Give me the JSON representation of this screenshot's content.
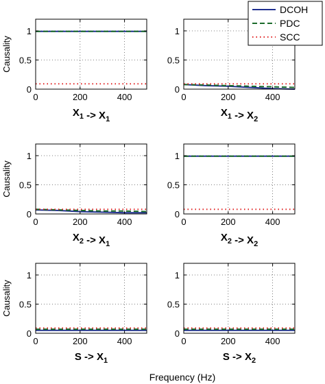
{
  "figure": {
    "x_common_label": "Frequency (Hz)"
  },
  "legend": {
    "placement": "top-right",
    "entries": [
      {
        "label": "DCOH",
        "color": "#1f2f8f",
        "style": "solid"
      },
      {
        "label": "PDC",
        "color": "#1a6b2a",
        "style": "dashed"
      },
      {
        "label": "SCC",
        "color": "#e02020",
        "style": "dotted"
      }
    ]
  },
  "chart_data": [
    {
      "type": "line",
      "panel": "1-1",
      "title": {
        "base1": "X",
        "sub1": "1",
        "arrow": " -> ",
        "base2": "X",
        "sub2": "1"
      },
      "ylabel": "Causality",
      "xlim": [
        0,
        500
      ],
      "ylim": [
        0,
        1.2
      ],
      "xticks": [
        "0",
        "200",
        "400"
      ],
      "yticks": [
        "0",
        "0.5",
        "1"
      ],
      "grid": true,
      "x": [
        0,
        100,
        200,
        300,
        400,
        500
      ],
      "series": [
        {
          "name": "DCOH",
          "values": [
            0.99,
            0.99,
            0.99,
            0.99,
            0.99,
            0.99
          ]
        },
        {
          "name": "PDC",
          "values": [
            0.99,
            0.99,
            0.99,
            0.99,
            0.99,
            0.99
          ]
        },
        {
          "name": "SCC",
          "values": [
            0.09,
            0.09,
            0.09,
            0.09,
            0.09,
            0.09
          ]
        }
      ]
    },
    {
      "type": "line",
      "panel": "1-2",
      "title": {
        "base1": "X",
        "sub1": "1",
        "arrow": " -> ",
        "base2": "X",
        "sub2": "2"
      },
      "ylabel": "",
      "xlim": [
        0,
        500
      ],
      "ylim": [
        0,
        1.2
      ],
      "xticks": [
        "0",
        "200",
        "400"
      ],
      "yticks": [
        "0",
        "0.5",
        "1"
      ],
      "grid": true,
      "x": [
        0,
        100,
        200,
        300,
        400,
        500
      ],
      "series": [
        {
          "name": "DCOH",
          "values": [
            0.08,
            0.06,
            0.05,
            0.03,
            0.01,
            0.0
          ]
        },
        {
          "name": "PDC",
          "values": [
            0.08,
            0.07,
            0.06,
            0.05,
            0.04,
            0.03
          ]
        },
        {
          "name": "SCC",
          "values": [
            0.09,
            0.09,
            0.09,
            0.09,
            0.09,
            0.09
          ]
        }
      ]
    },
    {
      "type": "line",
      "panel": "2-1",
      "title": {
        "base1": "X",
        "sub1": "2",
        "arrow": " -> ",
        "base2": "X",
        "sub2": "1"
      },
      "ylabel": "Causality",
      "xlim": [
        0,
        500
      ],
      "ylim": [
        0,
        1.2
      ],
      "xticks": [
        "0",
        "200",
        "400"
      ],
      "yticks": [
        "0",
        "0.5",
        "1"
      ],
      "grid": true,
      "x": [
        0,
        100,
        200,
        300,
        400,
        500
      ],
      "series": [
        {
          "name": "DCOH",
          "values": [
            0.07,
            0.06,
            0.04,
            0.03,
            0.02,
            0.02
          ]
        },
        {
          "name": "PDC",
          "values": [
            0.08,
            0.07,
            0.06,
            0.05,
            0.05,
            0.04
          ]
        },
        {
          "name": "SCC",
          "values": [
            0.08,
            0.08,
            0.08,
            0.08,
            0.08,
            0.08
          ]
        }
      ]
    },
    {
      "type": "line",
      "panel": "2-2",
      "title": {
        "base1": "X",
        "sub1": "2",
        "arrow": " -> ",
        "base2": "X",
        "sub2": "2"
      },
      "ylabel": "",
      "xlim": [
        0,
        500
      ],
      "ylim": [
        0,
        1.2
      ],
      "xticks": [
        "0",
        "200",
        "400"
      ],
      "yticks": [
        "0",
        "0.5",
        "1"
      ],
      "grid": true,
      "x": [
        0,
        100,
        200,
        300,
        400,
        500
      ],
      "series": [
        {
          "name": "DCOH",
          "values": [
            0.99,
            0.99,
            0.99,
            0.99,
            0.99,
            0.99
          ]
        },
        {
          "name": "PDC",
          "values": [
            0.99,
            0.99,
            0.99,
            0.99,
            0.99,
            0.99
          ]
        },
        {
          "name": "SCC",
          "values": [
            0.08,
            0.08,
            0.08,
            0.08,
            0.08,
            0.08
          ]
        }
      ]
    },
    {
      "type": "line",
      "panel": "3-1",
      "title": {
        "base1": "S",
        "sub1": "",
        "arrow": " -> ",
        "base2": "X",
        "sub2": "1"
      },
      "ylabel": "Causality",
      "xlim": [
        0,
        500
      ],
      "ylim": [
        0,
        1.2
      ],
      "xticks": [
        "0",
        "200",
        "400"
      ],
      "yticks": [
        "0",
        "0.5",
        "1"
      ],
      "grid": true,
      "x": [
        0,
        100,
        200,
        300,
        400,
        500
      ],
      "series": [
        {
          "name": "DCOH",
          "values": [
            0.05,
            0.05,
            0.05,
            0.05,
            0.05,
            0.05
          ]
        },
        {
          "name": "PDC",
          "values": [
            0.07,
            0.07,
            0.07,
            0.07,
            0.07,
            0.07
          ]
        },
        {
          "name": "SCC",
          "values": [
            0.09,
            0.09,
            0.09,
            0.09,
            0.09,
            0.09
          ]
        }
      ]
    },
    {
      "type": "line",
      "panel": "3-2",
      "title": {
        "base1": "S",
        "sub1": "",
        "arrow": " -> ",
        "base2": "X",
        "sub2": "2"
      },
      "ylabel": "",
      "xlim": [
        0,
        500
      ],
      "ylim": [
        0,
        1.2
      ],
      "xticks": [
        "0",
        "200",
        "400"
      ],
      "yticks": [
        "0",
        "0.5",
        "1"
      ],
      "grid": true,
      "x": [
        0,
        100,
        200,
        300,
        400,
        500
      ],
      "series": [
        {
          "name": "DCOH",
          "values": [
            0.05,
            0.05,
            0.05,
            0.05,
            0.05,
            0.05
          ]
        },
        {
          "name": "PDC",
          "values": [
            0.07,
            0.07,
            0.07,
            0.07,
            0.07,
            0.07
          ]
        },
        {
          "name": "SCC",
          "values": [
            0.09,
            0.09,
            0.09,
            0.09,
            0.09,
            0.09
          ]
        }
      ]
    }
  ]
}
